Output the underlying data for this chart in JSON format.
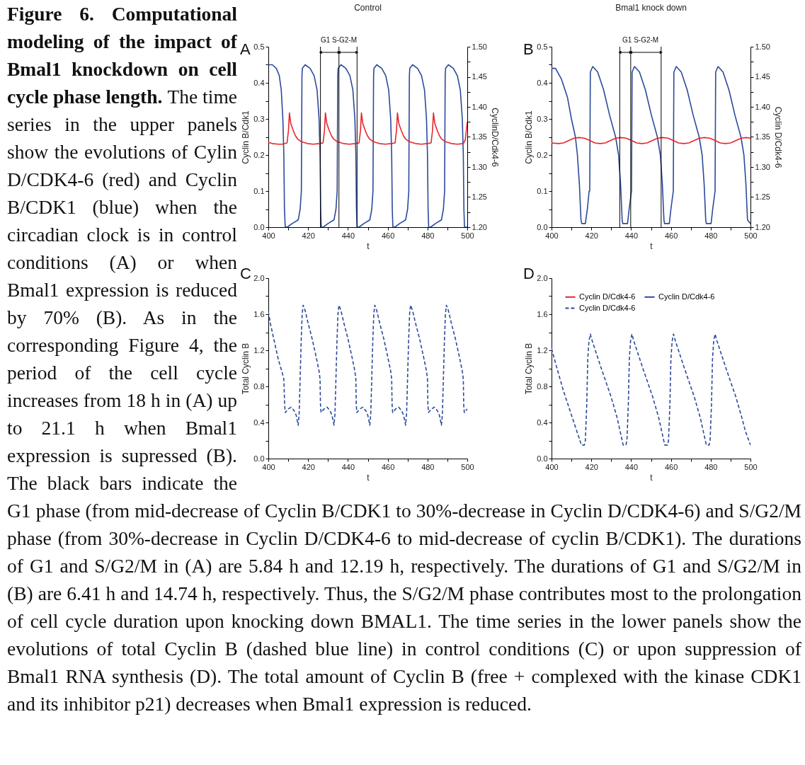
{
  "chart_data": [
    {
      "type": "line",
      "title": "Control",
      "xlabel": "t",
      "ylabel": "Cyclin B/Cdk1",
      "y2label": "CyclinD/Cdk4-6",
      "annotations": [
        "A",
        "G1 S-G2-M",
        "Figure 6. Computational modeling of the impact of Bmal1 knockdown on cell cycle phase length.",
        "The time series in the upper panels show the evolutions of Cylin D/CDK4-6 (red) and Cyclin B/CDK1 (blue) when the circadian clock is in control conditions (A) or when Bmal1 expression is reduced by 70% (B). As in the corresponding Figure 4, the period of the cell cycle increases from 18 h in (A) up to 21.1 h when Bmal1 expression is supressed (B). The black bars indicate the G1 phase (from mid-decrease of Cyclin B/CDK1 to 30%-decrease in Cyclin D/CDK4-6) and S/G2/M phase (from 30%-decrease in Cyclin D/CDK4-6 to mid-decrease of cyclin B/CDK1). The durations of G1 and S/G2/M in (A) are 5.84 h and 12.19 h, respectively. The durations of G1 and S/G2/M in (B) are 6.41 h and 14.74 h, respectively. Thus, the S/G2/M phase contributes most to the prolongation of cell cycle duration upon knocking down BMAL1. The time series in the lower panels show the evolutions of total Cyclin B (dashed blue line) in control conditions (C) or upon suppression of Bmal1 RNA synthesis (D). The total amount of Cyclin B (free + complexed with the kinase CDK1 and its inhibitor p21) decreases when Bmal1 expression is reduced."
      ],
      "xlim": [
        400,
        500
      ],
      "xticks": [
        400,
        {
          "value": 410,
          "label": null
        },
        420,
        {
          "value": 430,
          "label": null
        },
        440,
        {
          "value": 450,
          "label": null
        },
        460,
        {
          "value": 470,
          "label": null
        },
        480,
        {
          "value": 490,
          "label": null
        },
        500
      ],
      "ylim": [
        0,
        0.5
      ],
      "yticks": [
        {
          "value": 0,
          "label": "0.0"
        },
        {
          "value": 0.05,
          "label": null
        },
        0.1,
        {
          "value": 0.15,
          "label": null
        },
        0.2,
        {
          "value": 0.25,
          "label": null
        },
        0.3,
        {
          "value": 0.35,
          "label": null
        },
        0.4,
        {
          "value": 0.45,
          "label": null
        },
        0.5
      ],
      "y2lim": [
        1.2,
        1.5
      ],
      "y2ticks": [
        {
          "value": 1.2,
          "label": "1.20"
        },
        {
          "value": 1.225,
          "label": null
        },
        1.25,
        {
          "value": 1.275,
          "label": null
        },
        {
          "value": 1.3,
          "label": "1.30"
        },
        {
          "value": 1.325,
          "label": null
        },
        1.35,
        {
          "value": 1.375,
          "label": null
        },
        {
          "value": 1.4,
          "label": "1.40"
        },
        {
          "value": 1.425,
          "label": null
        },
        1.45,
        {
          "value": 1.475,
          "label": null
        },
        {
          "value": 1.5,
          "label": "1.50"
        }
      ],
      "ref_lines": [
        {
          "axis": "x",
          "value": 426.2
        },
        {
          "axis": "x",
          "value": 435.5
        },
        {
          "axis": "x",
          "value": 444.6
        }
      ],
      "series": [
        {
          "color": "#2b4a9a",
          "x": [
            400,
            402,
            404,
            405.5,
            406.5,
            407.3,
            407.8,
            408.1,
            408.5,
            409.5,
            412,
            415,
            416,
            416.6,
            416.9,
            417.1,
            418.5,
            421,
            423,
            424.5,
            425.5,
            426,
            426.3,
            426.6,
            427.6,
            430,
            433,
            434,
            434.6,
            434.9,
            435.1,
            436.5,
            439,
            441,
            442.5,
            443.5,
            444,
            444.3,
            444.6,
            445.6,
            448,
            451,
            452,
            452.6,
            452.9,
            453.1,
            454.5,
            457,
            459,
            460.5,
            461.5,
            462,
            462.3,
            462.6,
            463.6,
            466,
            469,
            470,
            470.6,
            470.9,
            471.1,
            472.5,
            475,
            477,
            478.5,
            479.5,
            480,
            480.3,
            480.6,
            481.6,
            484,
            487,
            488,
            488.6,
            488.9,
            489.1,
            490.5,
            493,
            495,
            496.5,
            497.5,
            498,
            498.3,
            498.6,
            500
          ],
          "values": [
            0.45,
            0.45,
            0.44,
            0.42,
            0.38,
            0.3,
            0.2,
            0.05,
            0,
            0,
            0.01,
            0.02,
            0.05,
            0.1,
            0.42,
            0.44,
            0.45,
            0.44,
            0.42,
            0.38,
            0.3,
            0.2,
            0.05,
            0,
            0,
            0.01,
            0.02,
            0.05,
            0.1,
            0.42,
            0.44,
            0.45,
            0.44,
            0.42,
            0.38,
            0.3,
            0.2,
            0.05,
            0,
            0,
            0.01,
            0.02,
            0.05,
            0.1,
            0.42,
            0.44,
            0.45,
            0.44,
            0.42,
            0.38,
            0.3,
            0.2,
            0.05,
            0,
            0,
            0.01,
            0.02,
            0.05,
            0.1,
            0.42,
            0.44,
            0.45,
            0.44,
            0.42,
            0.38,
            0.3,
            0.2,
            0.05,
            0,
            0,
            0.01,
            0.02,
            0.05,
            0.1,
            0.42,
            0.44,
            0.45,
            0.44,
            0.42,
            0.38,
            0.3,
            0.2,
            0.05,
            0,
            0
          ]
        },
        {
          "color": "#e8262b",
          "axis": "y2",
          "x": [
            400,
            402,
            405,
            407,
            409.4,
            410.1,
            410.6,
            411.3,
            412.6,
            413.6,
            414.6,
            416.6,
            419.6,
            422.6,
            425.6,
            427.5,
            428.2,
            428.7,
            429.4,
            430.7,
            431.7,
            432.7,
            434.7,
            437.7,
            440.7,
            443.7,
            445.6,
            446.3,
            446.8,
            447.5,
            448.8,
            449.8,
            450.8,
            452.8,
            455.8,
            458.8,
            461.8,
            463.7,
            464.4,
            464.9,
            465.6,
            466.9,
            467.9,
            468.9,
            470.9,
            473.9,
            476.9,
            479.9,
            481.8,
            482.5,
            483,
            483.7,
            485,
            486,
            487,
            489,
            492,
            495,
            498,
            499,
            500
          ],
          "values": [
            1.341,
            1.339,
            1.338,
            1.338,
            1.34,
            1.36,
            1.39,
            1.372,
            1.36,
            1.352,
            1.347,
            1.342,
            1.339,
            1.338,
            1.339,
            1.34,
            1.36,
            1.39,
            1.372,
            1.36,
            1.352,
            1.347,
            1.342,
            1.339,
            1.338,
            1.339,
            1.34,
            1.36,
            1.39,
            1.372,
            1.36,
            1.352,
            1.347,
            1.342,
            1.339,
            1.338,
            1.339,
            1.34,
            1.36,
            1.39,
            1.372,
            1.36,
            1.352,
            1.347,
            1.342,
            1.339,
            1.338,
            1.339,
            1.34,
            1.36,
            1.39,
            1.372,
            1.36,
            1.352,
            1.347,
            1.342,
            1.339,
            1.338,
            1.339,
            1.345,
            1.375
          ]
        }
      ]
    },
    {
      "type": "line",
      "title": "Bmal1 knock down",
      "xlabel": "t",
      "ylabel": "Cyclin B/Cdk1",
      "y2label": "Cyclin D/Cdk4-6",
      "annotations": [
        "B",
        "G1 S-G2-M"
      ],
      "xlim": [
        400,
        500
      ],
      "xticks": [
        400,
        {
          "value": 410,
          "label": null
        },
        420,
        {
          "value": 430,
          "label": null
        },
        440,
        {
          "value": 450,
          "label": null
        },
        460,
        {
          "value": 470,
          "label": null
        },
        480,
        {
          "value": 490,
          "label": null
        },
        500
      ],
      "ylim": [
        0,
        0.5
      ],
      "yticks": [
        {
          "value": 0,
          "label": "0.0"
        },
        {
          "value": 0.05,
          "label": null
        },
        0.1,
        {
          "value": 0.15,
          "label": null
        },
        0.2,
        {
          "value": 0.25,
          "label": null
        },
        0.3,
        {
          "value": 0.35,
          "label": null
        },
        0.4,
        {
          "value": 0.45,
          "label": null
        },
        0.5
      ],
      "y2lim": [
        1.2,
        1.5
      ],
      "y2ticks": [
        {
          "value": 1.2,
          "label": "1.20"
        },
        {
          "value": 1.225,
          "label": null
        },
        1.25,
        {
          "value": 1.275,
          "label": null
        },
        {
          "value": 1.3,
          "label": "1.30"
        },
        {
          "value": 1.325,
          "label": null
        },
        1.35,
        {
          "value": 1.375,
          "label": null
        },
        {
          "value": 1.4,
          "label": "1.40"
        },
        {
          "value": 1.425,
          "label": null
        },
        1.45,
        {
          "value": 1.475,
          "label": null
        },
        {
          "value": 1.5,
          "label": "1.50"
        }
      ],
      "ref_lines": [
        {
          "axis": "x",
          "value": 434.3
        },
        {
          "axis": "x",
          "value": 439.8
        },
        {
          "axis": "x",
          "value": 455.1
        }
      ],
      "series": [
        {
          "color": "#2b4a9a",
          "x": [
            400,
            402,
            405,
            408,
            410,
            412,
            413,
            414,
            414.8,
            415.2,
            417,
            418,
            418.9,
            419.2,
            419.5,
            420.7,
            423.2,
            426.2,
            429.2,
            432.2,
            433.7,
            434.7,
            435.5,
            435.8,
            438.2,
            439,
            440.2,
            440.5,
            441.7,
            444.2,
            447.2,
            450.2,
            453.2,
            454.7,
            455.7,
            456.5,
            456.8,
            459.2,
            460,
            461.2,
            461.5,
            462.7,
            465.2,
            468.2,
            471.2,
            474.2,
            475.7,
            476.7,
            477.5,
            477.8,
            480.2,
            481,
            482.2,
            482.5,
            483.7,
            486.2,
            489.2,
            492.2,
            495.2,
            496.7,
            497.7,
            498.5,
            500
          ],
          "values": [
            0.44,
            0.44,
            0.41,
            0.36,
            0.3,
            0.25,
            0.2,
            0.12,
            0.02,
            0.01,
            0.01,
            0.05,
            0.1,
            0.1,
            0.43,
            0.445,
            0.43,
            0.38,
            0.31,
            0.25,
            0.2,
            0.12,
            0.02,
            0.01,
            0.01,
            0.05,
            0.1,
            0.43,
            0.445,
            0.43,
            0.38,
            0.31,
            0.25,
            0.2,
            0.12,
            0.02,
            0.01,
            0.01,
            0.05,
            0.1,
            0.43,
            0.445,
            0.43,
            0.38,
            0.31,
            0.25,
            0.2,
            0.12,
            0.02,
            0.01,
            0.01,
            0.05,
            0.1,
            0.43,
            0.445,
            0.43,
            0.38,
            0.31,
            0.25,
            0.2,
            0.12,
            0.02,
            0.01
          ]
        },
        {
          "color": "#e8262b",
          "axis": "y2",
          "x": [
            400,
            403.4,
            406,
            408.7,
            411.3,
            413.9,
            416.5,
            419.2,
            421.8,
            424.4,
            427,
            429.7,
            432.3,
            434.9,
            437.5,
            440.2,
            442.8,
            445.4,
            448,
            450.7,
            453.3,
            455.9,
            458.5,
            461.2,
            463.8,
            466.4,
            469,
            471.7,
            474.3,
            476.9,
            479.5,
            482.2,
            484.8,
            487.4,
            490,
            492.7,
            495.3,
            497.9,
            500
          ],
          "values": [
            1.34,
            1.339,
            1.34,
            1.344,
            1.348,
            1.349,
            1.348,
            1.344,
            1.34,
            1.339,
            1.34,
            1.344,
            1.348,
            1.349,
            1.348,
            1.344,
            1.34,
            1.339,
            1.34,
            1.344,
            1.348,
            1.349,
            1.348,
            1.344,
            1.34,
            1.339,
            1.34,
            1.344,
            1.348,
            1.349,
            1.348,
            1.344,
            1.34,
            1.339,
            1.34,
            1.344,
            1.348,
            1.349,
            1.348
          ]
        }
      ]
    },
    {
      "type": "line",
      "xlabel": "t",
      "ylabel": "Total Cyclin B",
      "line_style": "dashed",
      "annotations": [
        "C"
      ],
      "xlim": [
        400,
        500
      ],
      "xticks": [
        400,
        {
          "value": 410,
          "label": null
        },
        420,
        {
          "value": 430,
          "label": null
        },
        440,
        {
          "value": 450,
          "label": null
        },
        460,
        {
          "value": 470,
          "label": null
        },
        480,
        {
          "value": 490,
          "label": null
        },
        500
      ],
      "ylim": [
        0,
        2
      ],
      "yticks": [
        {
          "value": 0,
          "label": "0.0"
        },
        {
          "value": 0.2,
          "label": null
        },
        0.4,
        {
          "value": 0.6,
          "label": null
        },
        0.8,
        {
          "value": 1,
          "label": null
        },
        1.2,
        {
          "value": 1.4,
          "label": null
        },
        1.6,
        {
          "value": 1.8,
          "label": null
        },
        {
          "value": 2,
          "label": "2.0"
        }
      ],
      "series": [
        {
          "color": "#2b4a9a",
          "x": [
            400,
            401,
            403,
            405,
            407,
            407.8,
            408.2,
            408.5,
            410,
            411.5,
            413,
            414,
            415,
            415.5,
            416,
            416.5,
            417,
            417.5,
            418.5,
            420,
            422,
            424,
            425.5,
            426,
            426.2,
            426.5,
            428,
            429.5,
            431,
            432,
            433,
            433.5,
            434,
            434.5,
            435,
            435.5,
            436.5,
            438,
            440,
            442,
            443.5,
            444,
            444.2,
            444.5,
            446,
            447.5,
            449,
            450,
            451,
            451.5,
            452,
            452.5,
            453,
            453.5,
            454.5,
            456,
            458,
            460,
            461.5,
            462,
            462.2,
            462.5,
            464,
            465.5,
            467,
            468,
            469,
            469.5,
            470,
            470.5,
            471,
            471.5,
            472.5,
            474,
            476,
            478,
            479.5,
            480,
            480.2,
            480.5,
            482,
            483.5,
            485,
            486,
            487,
            487.5,
            488,
            488.5,
            489,
            489.5,
            490.5,
            492,
            494,
            496,
            497.5,
            498,
            498.2,
            498.5,
            500
          ],
          "values": [
            1.63,
            1.5,
            1.3,
            1.1,
            0.95,
            0.88,
            0.6,
            0.51,
            0.55,
            0.57,
            0.53,
            0.48,
            0.37,
            0.5,
            0.9,
            1.3,
            1.6,
            1.7,
            1.64,
            1.5,
            1.33,
            1.13,
            0.97,
            0.88,
            0.6,
            0.51,
            0.55,
            0.57,
            0.53,
            0.48,
            0.37,
            0.5,
            0.9,
            1.3,
            1.6,
            1.7,
            1.64,
            1.5,
            1.33,
            1.13,
            0.97,
            0.88,
            0.6,
            0.51,
            0.55,
            0.57,
            0.53,
            0.48,
            0.37,
            0.5,
            0.9,
            1.3,
            1.6,
            1.7,
            1.64,
            1.5,
            1.33,
            1.13,
            0.97,
            0.88,
            0.6,
            0.51,
            0.55,
            0.57,
            0.53,
            0.48,
            0.37,
            0.5,
            0.9,
            1.3,
            1.6,
            1.7,
            1.64,
            1.5,
            1.33,
            1.13,
            0.97,
            0.88,
            0.6,
            0.51,
            0.55,
            0.57,
            0.53,
            0.48,
            0.37,
            0.5,
            0.9,
            1.3,
            1.6,
            1.7,
            1.64,
            1.5,
            1.33,
            1.13,
            0.97,
            0.88,
            0.6,
            0.51,
            0.55
          ]
        }
      ]
    },
    {
      "type": "line",
      "xlabel": "t",
      "ylabel": "Total Cyclin B",
      "legend": "top left",
      "annotations": [
        "D"
      ],
      "xlim": [
        400,
        500
      ],
      "xticks": [
        400,
        {
          "value": 410,
          "label": null
        },
        420,
        {
          "value": 430,
          "label": null
        },
        440,
        {
          "value": 450,
          "label": null
        },
        460,
        {
          "value": 470,
          "label": null
        },
        480,
        {
          "value": 490,
          "label": null
        },
        500
      ],
      "ylim": [
        0,
        2
      ],
      "yticks": [
        {
          "value": 0,
          "label": "0.0"
        },
        {
          "value": 0.2,
          "label": null
        },
        0.4,
        {
          "value": 0.6,
          "label": null
        },
        0.8,
        {
          "value": 1,
          "label": null
        },
        1.2,
        {
          "value": 1.4,
          "label": null
        },
        1.6,
        {
          "value": 1.8,
          "label": null
        },
        {
          "value": 2,
          "label": "2.0"
        }
      ],
      "series": [
        {
          "name": "Cyclin D/Cdk4-6",
          "color": "#e8262b"
        },
        {
          "name": "Cyclin D/Cdk4-6",
          "color": "#2b4a9a"
        },
        {
          "name": "Cyclin D/Cdk4-6",
          "color": "#2b4a9a",
          "line_style": "dashed",
          "x": [
            400,
            403,
            406,
            409,
            412,
            414,
            415,
            416.5,
            417,
            417.7,
            418.2,
            418.8,
            419.5,
            420.5,
            425,
            430,
            433,
            435,
            436,
            437.4,
            437.9,
            438.6,
            439.1,
            439.7,
            440.4,
            441.4,
            445.9,
            450.9,
            453.9,
            455.9,
            456.9,
            458.3,
            458.8,
            459.5,
            460,
            460.6,
            461.3,
            462.3,
            466.8,
            471.8,
            474.8,
            476.8,
            477.8,
            479.2,
            479.7,
            480.4,
            480.9,
            481.5,
            482.2,
            483.2,
            487.7,
            492.7,
            495.7,
            497.5,
            500
          ],
          "values": [
            1.22,
            0.98,
            0.75,
            0.55,
            0.35,
            0.22,
            0.15,
            0.15,
            0.2,
            0.6,
            1.1,
            1.3,
            1.38,
            1.3,
            1.0,
            0.68,
            0.45,
            0.25,
            0.15,
            0.15,
            0.2,
            0.6,
            1.1,
            1.3,
            1.38,
            1.3,
            1.0,
            0.68,
            0.45,
            0.25,
            0.15,
            0.15,
            0.2,
            0.6,
            1.1,
            1.3,
            1.38,
            1.3,
            1.0,
            0.68,
            0.45,
            0.25,
            0.15,
            0.15,
            0.2,
            0.6,
            1.1,
            1.3,
            1.38,
            1.3,
            1.0,
            0.68,
            0.45,
            0.3,
            0.15
          ]
        }
      ]
    }
  ]
}
